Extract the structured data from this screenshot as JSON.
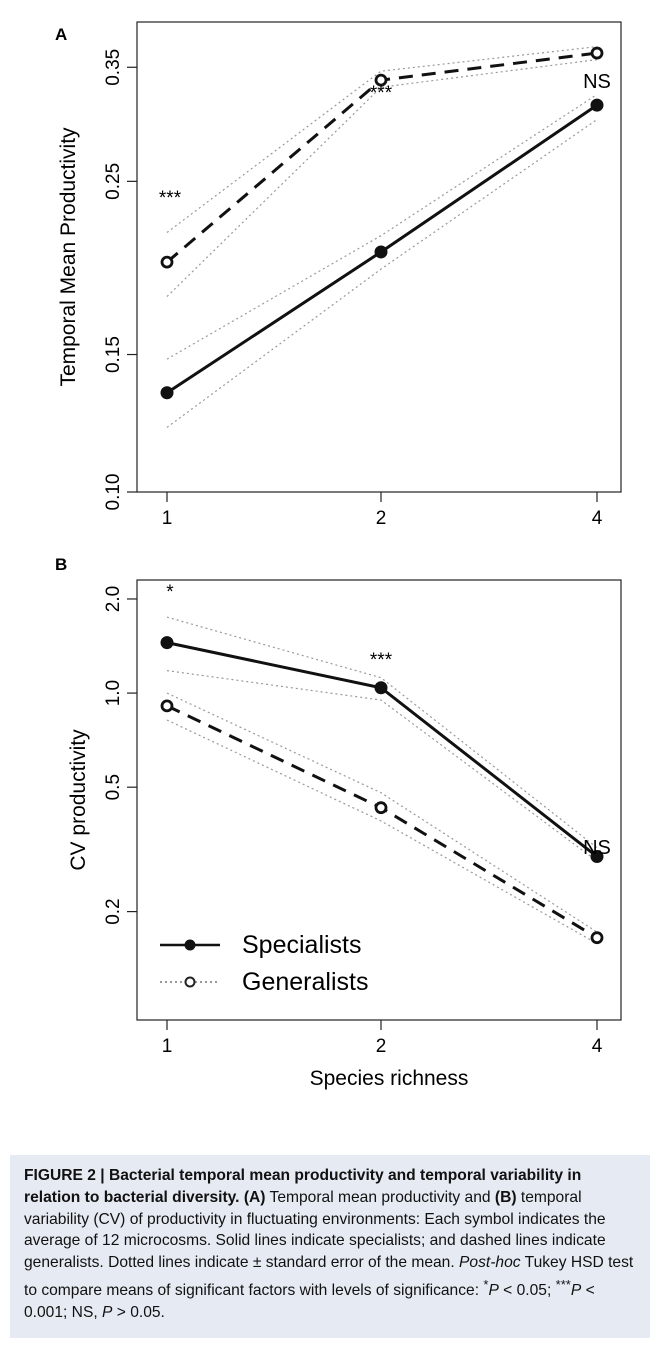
{
  "chart_data": [
    {
      "panel_label": "A",
      "type": "line",
      "ylabel": "Temporal Mean Productivity",
      "xlabel": "",
      "x": [
        1,
        2,
        4
      ],
      "x_tick_labels": [
        "1",
        "2",
        "4"
      ],
      "y_scale": "log",
      "ylim": [
        0.1,
        0.4
      ],
      "y_ticks": [
        0.1,
        0.15,
        0.25,
        0.35
      ],
      "y_tick_labels": [
        "0.10",
        "0.15",
        "0.25",
        "0.35"
      ],
      "series": [
        {
          "name": "Specialists",
          "style": "solid",
          "marker": "filled-circle",
          "values": [
            0.134,
            0.203,
            0.313
          ],
          "upper": [
            0.148,
            0.213,
            0.323
          ],
          "lower": [
            0.121,
            0.193,
            0.3
          ]
        },
        {
          "name": "Generalists",
          "style": "dashed",
          "marker": "open-circle",
          "values": [
            0.197,
            0.337,
            0.365
          ],
          "upper": [
            0.215,
            0.346,
            0.372
          ],
          "lower": [
            0.178,
            0.33,
            0.358
          ]
        }
      ],
      "annotations": [
        {
          "x": 1,
          "text": "***"
        },
        {
          "x": 2,
          "text": "***"
        },
        {
          "x": 4,
          "text": "NS"
        }
      ]
    },
    {
      "panel_label": "B",
      "type": "line",
      "ylabel": "CV productivity",
      "xlabel": "Species richness",
      "x": [
        1,
        2,
        4
      ],
      "x_tick_labels": [
        "1",
        "2",
        "4"
      ],
      "y_scale": "log",
      "ylim": [
        0.09,
        2.3
      ],
      "y_ticks": [
        0.2,
        0.5,
        1.0,
        2.0
      ],
      "y_tick_labels": [
        "0.2",
        "0.5",
        "1.0",
        "2.0"
      ],
      "series": [
        {
          "name": "Specialists",
          "style": "solid",
          "marker": "filled-circle",
          "values": [
            1.45,
            1.04,
            0.3
          ],
          "upper": [
            1.75,
            1.12,
            0.32
          ],
          "lower": [
            1.18,
            0.95,
            0.29
          ]
        },
        {
          "name": "Generalists",
          "style": "dashed",
          "marker": "open-circle",
          "values": [
            0.91,
            0.43,
            0.165
          ],
          "upper": [
            1.0,
            0.48,
            0.172
          ],
          "lower": [
            0.82,
            0.39,
            0.158
          ]
        }
      ],
      "annotations": [
        {
          "x": 1,
          "text": "*"
        },
        {
          "x": 2,
          "text": "***"
        },
        {
          "x": 4,
          "text": "NS"
        }
      ],
      "legend": {
        "placement": "bottom-left",
        "entries": [
          "Specialists",
          "Generalists"
        ]
      }
    }
  ],
  "caption": {
    "title": "FIGURE 2 | Bacterial temporal mean productivity and temporal variability in relation to bacterial diversity.",
    "a_label": "(A)",
    "a_text": " Temporal mean productivity and ",
    "b_label": "(B)",
    "b_text": " temporal variability (CV) of productivity in fluctuating environments: Each symbol indicates the average of 12 microcosms. Solid lines indicate specialists; and dashed lines indicate generalists. Dotted lines indicate ± standard error of the mean. ",
    "posthoc_italic": "Post-hoc",
    "posthoc_rest": " Tukey HSD test to compare means of significant factors with levels of significance: ",
    "sig1_star": "*",
    "sig1_p": "P",
    "sig1_rest": " < 0.05;",
    "sig2_star": "***",
    "sig2_p": "P",
    "sig2_rest": " < 0.001; NS, ",
    "sig3_p": "P",
    "sig3_rest": " > 0.05."
  }
}
